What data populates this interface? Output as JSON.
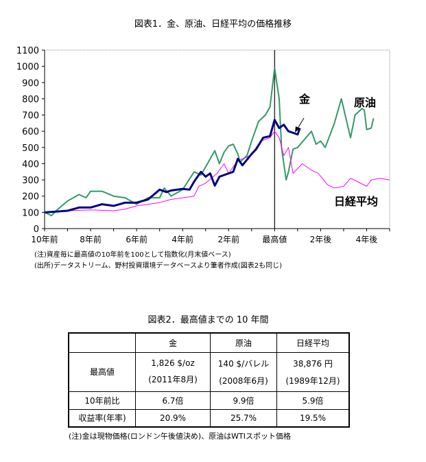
{
  "figure1": {
    "title": "図表1．金、原油、日経平均の価格推移",
    "note": "(注)資産毎に最高値の10年前を100として指数化(月末値ベース)",
    "source": "(出所)データストリーム、野村投資環境データベースより筆者作成(図表2も同じ)"
  },
  "chart_data": {
    "type": "line",
    "x_unit": "years relative to peak",
    "xlim": [
      -10,
      5
    ],
    "ylim": [
      0,
      1100
    ],
    "yticks": [
      "0",
      "100",
      "200",
      "300",
      "400",
      "500",
      "600",
      "700",
      "800",
      "900",
      "1000",
      "1100"
    ],
    "xticks": [
      {
        "x": -10,
        "label": "10年前"
      },
      {
        "x": -8,
        "label": "8年前"
      },
      {
        "x": -6,
        "label": "6年前"
      },
      {
        "x": -4,
        "label": "4年前"
      },
      {
        "x": -2,
        "label": "2年前"
      },
      {
        "x": 0,
        "label": "最高値"
      },
      {
        "x": 2,
        "label": "2年後"
      },
      {
        "x": 4,
        "label": "4年後"
      }
    ],
    "grid": false,
    "series": [
      {
        "name": "金",
        "color": "#000080",
        "x": [
          -10,
          -9.5,
          -9,
          -8.5,
          -8,
          -7.5,
          -7,
          -6.5,
          -6,
          -5.5,
          -5,
          -4.7,
          -4.5,
          -4,
          -3.7,
          -3.5,
          -3.2,
          -3,
          -2.8,
          -2.6,
          -2.4,
          -2,
          -1.8,
          -1.6,
          -1.4,
          -1,
          -0.8,
          -0.5,
          -0.2,
          0,
          0.2,
          0.4,
          0.6,
          0.8,
          1,
          1.1
        ],
        "y": [
          100,
          105,
          110,
          130,
          130,
          150,
          140,
          160,
          160,
          180,
          240,
          225,
          235,
          245,
          240,
          290,
          350,
          320,
          340,
          265,
          320,
          340,
          350,
          430,
          390,
          460,
          490,
          560,
          570,
          670,
          620,
          640,
          600,
          590,
          580,
          620
        ]
      },
      {
        "name": "原油",
        "color": "#339966",
        "x": [
          -10,
          -9.7,
          -9.5,
          -9,
          -8.5,
          -8.2,
          -8,
          -7.5,
          -7,
          -6.5,
          -6,
          -5.5,
          -5,
          -4.8,
          -4.5,
          -4,
          -3.5,
          -3.2,
          -3,
          -2.6,
          -2.4,
          -2.2,
          -2,
          -1.8,
          -1.6,
          -1.5,
          -1.2,
          -1,
          -0.7,
          -0.4,
          -0.2,
          0,
          0.2,
          0.3,
          0.5,
          0.6,
          0.8,
          1,
          1.3,
          1.6,
          1.8,
          2,
          2.2,
          2.6,
          2.9,
          3.1,
          3.3,
          3.5,
          3.8,
          3.9,
          4,
          4.2,
          4.3
        ],
        "y": [
          100,
          80,
          110,
          170,
          210,
          190,
          230,
          230,
          200,
          190,
          150,
          190,
          190,
          250,
          200,
          240,
          350,
          330,
          380,
          480,
          400,
          470,
          510,
          520,
          460,
          410,
          450,
          540,
          660,
          700,
          750,
          990,
          800,
          500,
          300,
          350,
          490,
          500,
          550,
          600,
          520,
          540,
          500,
          650,
          800,
          680,
          560,
          700,
          740,
          730,
          610,
          620,
          680
        ]
      },
      {
        "name": "日経平均",
        "color": "#ff00ff",
        "x": [
          -10,
          -9,
          -8,
          -7,
          -6.5,
          -6,
          -5.5,
          -5,
          -4.5,
          -4,
          -3.5,
          -3.3,
          -3,
          -2.5,
          -2.2,
          -2,
          -1.6,
          -1.2,
          -1,
          -0.6,
          -0.2,
          0,
          0.2,
          0.4,
          0.6,
          0.8,
          1,
          1.2,
          1.6,
          1.9,
          2.3,
          2.6,
          3,
          3.3,
          3.6,
          4,
          4.2,
          4.6,
          5
        ],
        "y": [
          100,
          110,
          115,
          110,
          120,
          140,
          150,
          160,
          180,
          190,
          200,
          260,
          280,
          340,
          400,
          340,
          420,
          440,
          460,
          540,
          560,
          600,
          560,
          450,
          500,
          340,
          370,
          400,
          360,
          340,
          270,
          250,
          260,
          310,
          290,
          260,
          300,
          310,
          300
        ]
      }
    ]
  },
  "figure2": {
    "title": "図表2．最高値までの 10 年間",
    "headers": [
      "",
      "金",
      "原油",
      "日経平均"
    ],
    "rows": [
      {
        "label": "最高値",
        "cells": [
          [
            "1,826 $/oz",
            "(2011年8月)"
          ],
          [
            "140 $/バレル",
            "(2008年6月)"
          ],
          [
            "38,876 円",
            "(1989年12月)"
          ]
        ]
      },
      {
        "label": "10年前比",
        "cells": [
          "6.7倍",
          "9.9倍",
          "5.9倍"
        ]
      },
      {
        "label": "収益率(年率)",
        "cells": [
          "20.9%",
          "25.7%",
          "19.5%"
        ]
      }
    ],
    "note": "(注)金は現物価格(ロンドン午後値決め)、原油はWTIスポット価格"
  }
}
